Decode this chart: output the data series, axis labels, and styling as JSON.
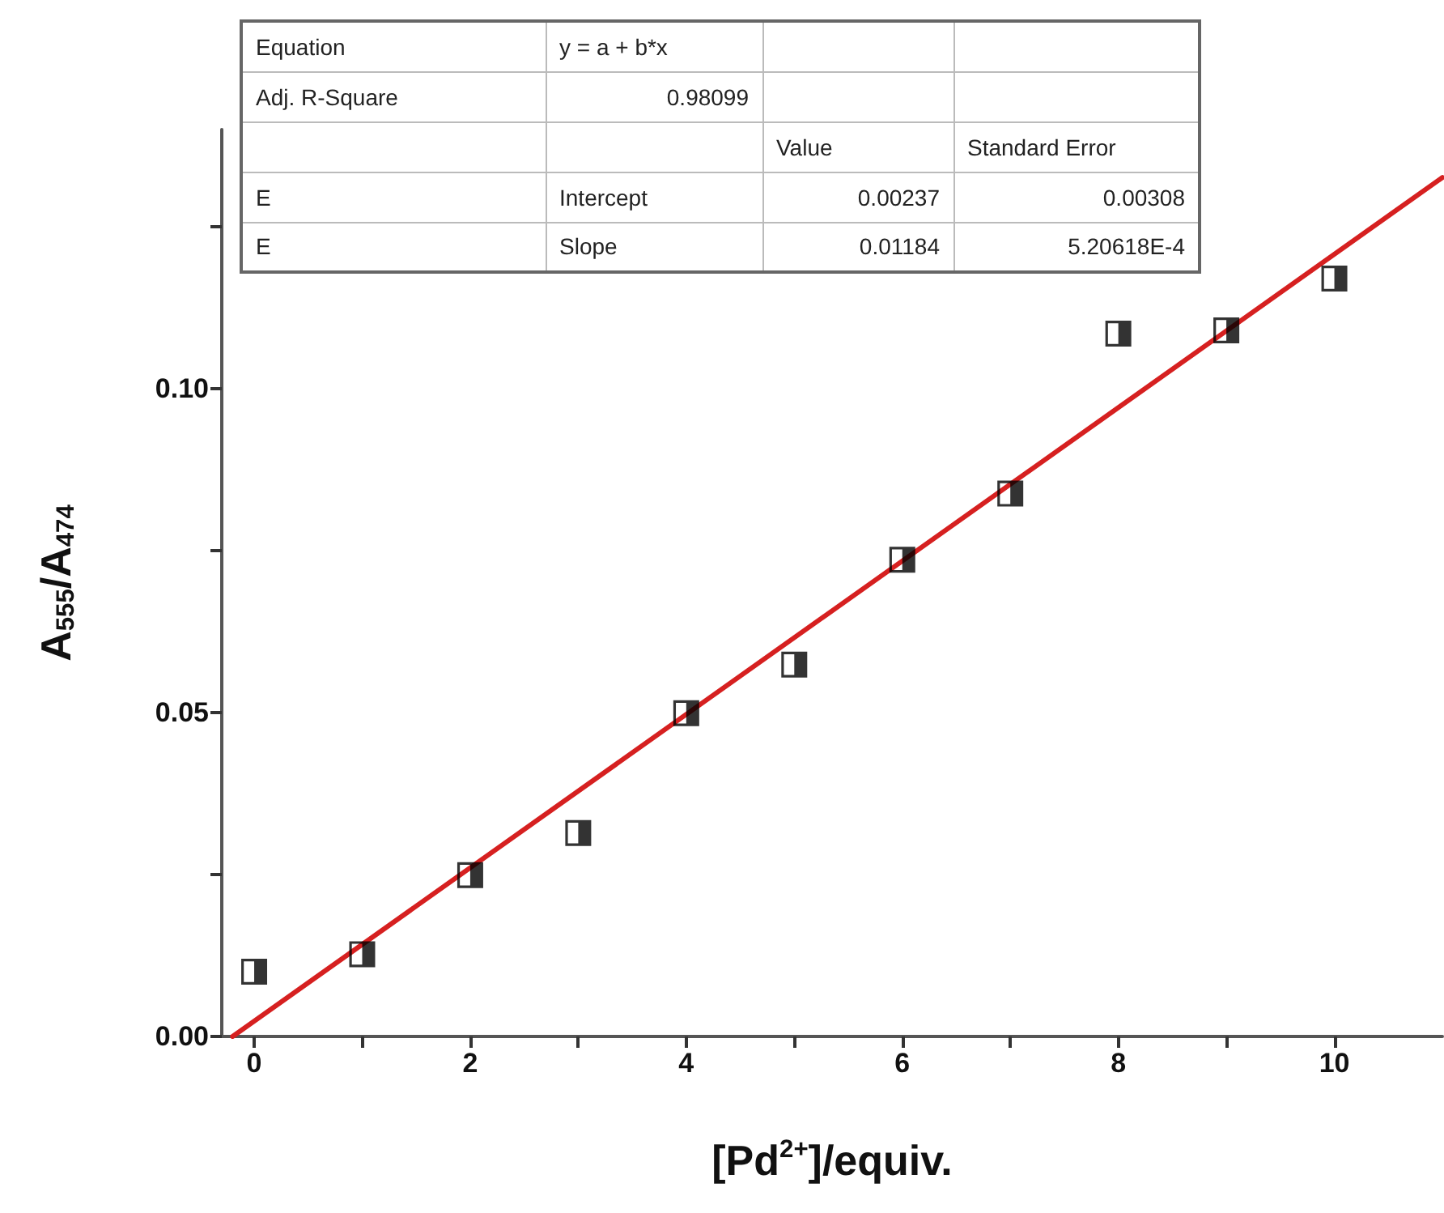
{
  "chart_data": {
    "type": "scatter",
    "xlabel": "[Pd$^{2+}$]/equiv.",
    "ylabel": "A$_{555}$/A$_{474}$",
    "xlim": [
      -0.3,
      11
    ],
    "ylim": [
      0,
      0.14
    ],
    "xticks": [
      0,
      {
        "value": 1,
        "label": null
      },
      2,
      {
        "value": 3,
        "label": null
      },
      4,
      {
        "value": 5,
        "label": null
      },
      6,
      {
        "value": 7,
        "label": null
      },
      8,
      {
        "value": 9,
        "label": null
      },
      10
    ],
    "yticks": [
      {
        "value": 0,
        "label": "0.00"
      },
      {
        "value": 0.025,
        "label": null
      },
      {
        "value": 0.05,
        "label": "0.05"
      },
      {
        "value": 0.075,
        "label": null
      },
      {
        "value": 0.1,
        "label": "0.10"
      },
      {
        "value": 0.125,
        "label": null
      }
    ],
    "grid": false,
    "marker": "square",
    "annotations": [
      "Equation",
      "y = a + b*x",
      "Adj. R-Square",
      "0.98099",
      "Value",
      "Standard Error",
      "E",
      "Intercept",
      "0.00237",
      "0.00308",
      "E",
      "Slope",
      "0.01184",
      "5.20618E-4"
    ],
    "series": [
      {
        "color": "#000000",
        "x": [
          0,
          1,
          2,
          3,
          4,
          5,
          6,
          7,
          8,
          9,
          10
        ],
        "values": [
          0.01,
          0.0127,
          0.0249,
          0.0314,
          0.0499,
          0.0574,
          0.0736,
          0.0838,
          0.1085,
          0.109,
          0.117
        ]
      },
      {
        "type": "line",
        "color": "#d62020",
        "marker": "none",
        "x": [
          -0.2,
          11
        ],
        "values": [
          0,
          0.1326
        ]
      }
    ]
  }
}
